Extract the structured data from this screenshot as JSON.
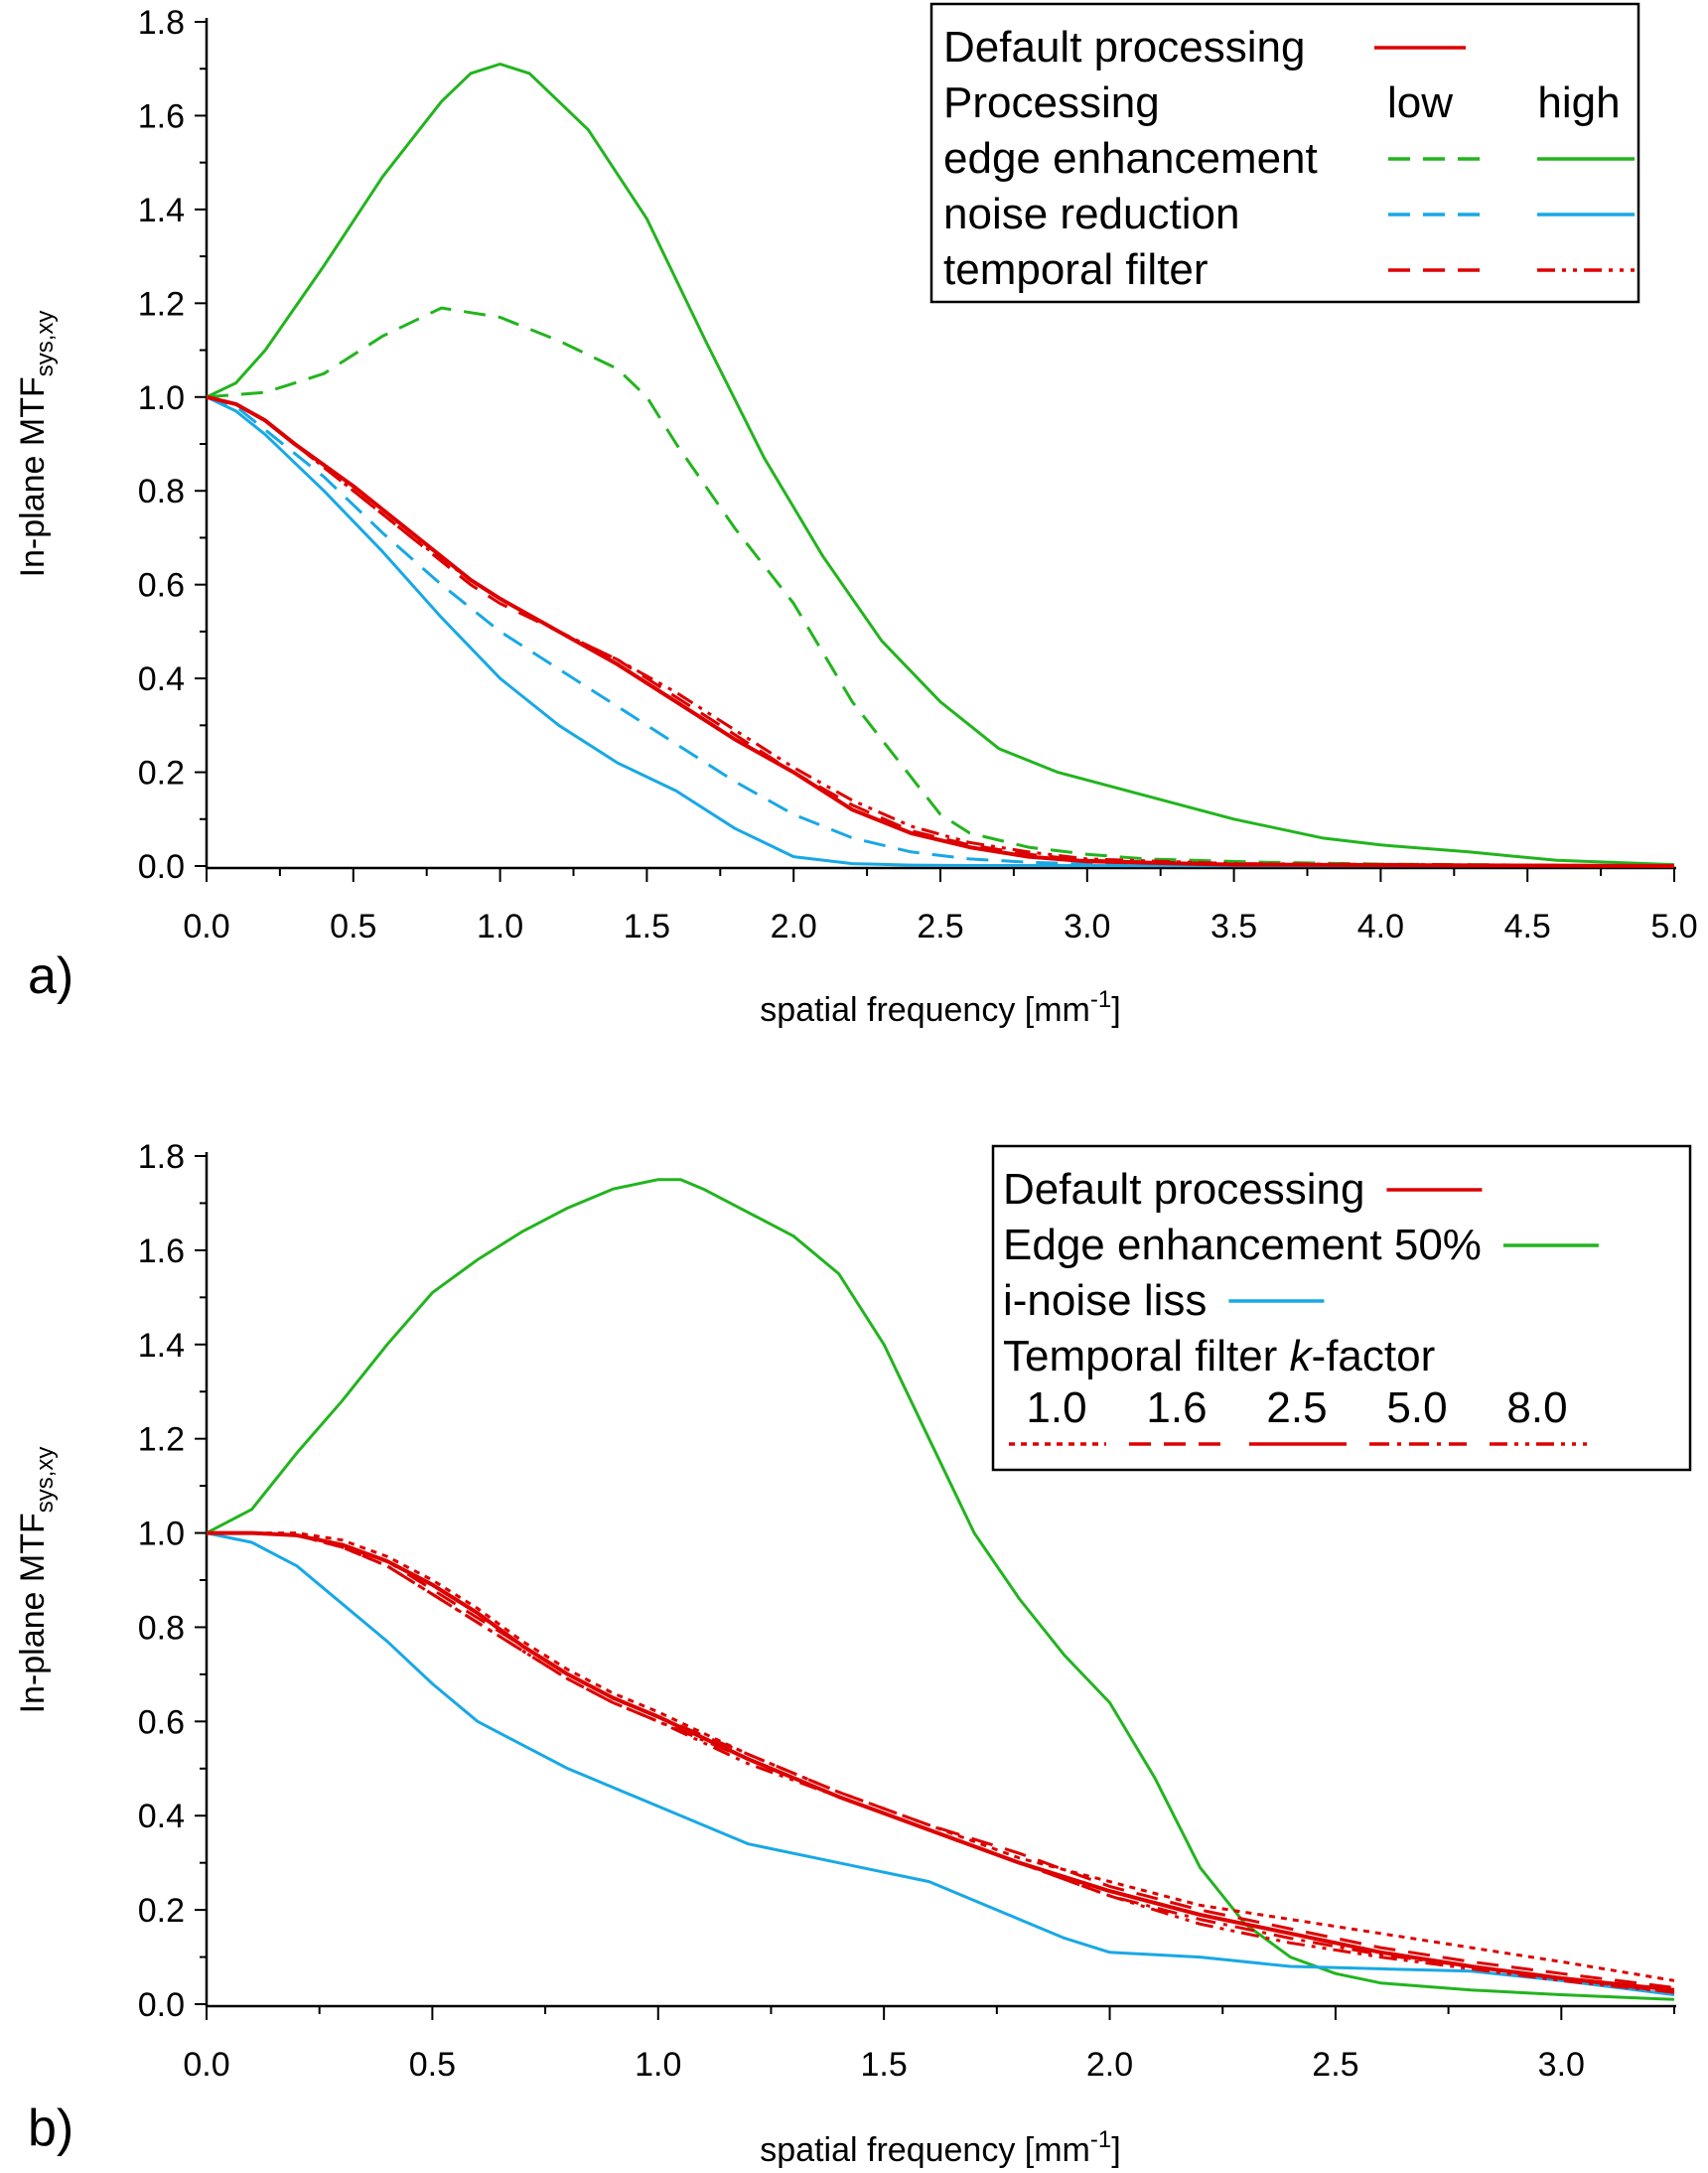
{
  "colors": {
    "red": "#dd0000",
    "green": "#22b41e",
    "cyan": "#18a8e6",
    "axis": "#000000"
  },
  "chart_data": [
    {
      "type": "line",
      "panel": "a)",
      "xlabel": "spatial frequency [mm",
      "xlabel_sup": "-1",
      "xlabel_end": "]",
      "ylabel": "In-plane MTF",
      "ylabel_sub": "sys,xy",
      "xlim": [
        0,
        5
      ],
      "ylim": [
        0,
        1.8
      ],
      "x_ticks": [
        "0.0",
        "0.5",
        "1.0",
        "1.5",
        "2.0",
        "2.5",
        "3.0",
        "3.5",
        "4.0",
        "4.5",
        "5.0"
      ],
      "y_ticks": [
        "0.0",
        "0.2",
        "0.4",
        "0.6",
        "0.8",
        "1.0",
        "1.2",
        "1.4",
        "1.6",
        "1.8"
      ],
      "legend": {
        "placement": "top-right",
        "rows": [
          {
            "label": "Default processing",
            "samples": [
              {
                "color": "red",
                "style": "solid"
              }
            ]
          },
          {
            "label": "Processing",
            "cols": [
              "low",
              "high"
            ]
          },
          {
            "label": "edge enhancement",
            "samples": [
              {
                "color": "green",
                "style": "dash"
              },
              {
                "color": "green",
                "style": "solid"
              }
            ]
          },
          {
            "label": "noise reduction",
            "samples": [
              {
                "color": "cyan",
                "style": "dash"
              },
              {
                "color": "cyan",
                "style": "solid"
              }
            ]
          },
          {
            "label": "temporal filter",
            "samples": [
              {
                "color": "red",
                "style": "dash"
              },
              {
                "color": "red",
                "style": "dashdotdot"
              }
            ]
          }
        ]
      },
      "series": [
        {
          "name": "Default processing",
          "color": "red",
          "style": "solid",
          "width": 4,
          "x": [
            0,
            0.1,
            0.2,
            0.3,
            0.5,
            0.7,
            0.9,
            1.0,
            1.2,
            1.4,
            1.6,
            1.8,
            2.0,
            2.2,
            2.4,
            2.6,
            2.8,
            3.0,
            3.5,
            5.0
          ],
          "y": [
            1.0,
            0.985,
            0.95,
            0.9,
            0.81,
            0.71,
            0.61,
            0.57,
            0.5,
            0.43,
            0.35,
            0.27,
            0.2,
            0.12,
            0.07,
            0.04,
            0.02,
            0.01,
            0.003,
            0
          ]
        },
        {
          "name": "edge enhancement low",
          "color": "green",
          "style": "dash",
          "width": 3,
          "x": [
            0,
            0.2,
            0.4,
            0.6,
            0.8,
            1.0,
            1.2,
            1.4,
            1.5,
            1.6,
            1.8,
            2.0,
            2.2,
            2.4,
            2.5,
            2.6,
            2.8,
            3.0,
            3.2,
            3.6,
            4.0,
            5.0
          ],
          "y": [
            1.0,
            1.01,
            1.05,
            1.13,
            1.19,
            1.17,
            1.12,
            1.06,
            1.0,
            0.9,
            0.72,
            0.56,
            0.35,
            0.19,
            0.11,
            0.07,
            0.04,
            0.025,
            0.015,
            0.008,
            0.004,
            0
          ]
        },
        {
          "name": "edge enhancement high",
          "color": "green",
          "style": "solid",
          "width": 3,
          "x": [
            0,
            0.1,
            0.2,
            0.4,
            0.6,
            0.8,
            0.9,
            1.0,
            1.1,
            1.3,
            1.5,
            1.7,
            1.9,
            2.1,
            2.3,
            2.5,
            2.7,
            2.9,
            3.2,
            3.5,
            3.8,
            4.0,
            4.3,
            4.6,
            5.0
          ],
          "y": [
            1.0,
            1.03,
            1.1,
            1.28,
            1.47,
            1.63,
            1.69,
            1.71,
            1.69,
            1.57,
            1.38,
            1.12,
            0.87,
            0.66,
            0.48,
            0.35,
            0.25,
            0.2,
            0.15,
            0.1,
            0.06,
            0.045,
            0.03,
            0.012,
            0.003
          ]
        },
        {
          "name": "noise reduction low",
          "color": "cyan",
          "style": "dash",
          "width": 3,
          "x": [
            0,
            0.1,
            0.2,
            0.4,
            0.6,
            0.8,
            1.0,
            1.2,
            1.4,
            1.6,
            1.8,
            2.0,
            2.2,
            2.4,
            2.6,
            2.8,
            3.0,
            5.0
          ],
          "y": [
            1.0,
            0.98,
            0.93,
            0.83,
            0.71,
            0.6,
            0.5,
            0.42,
            0.34,
            0.26,
            0.18,
            0.11,
            0.06,
            0.03,
            0.015,
            0.008,
            0.004,
            0
          ]
        },
        {
          "name": "noise reduction high",
          "color": "cyan",
          "style": "solid",
          "width": 3,
          "x": [
            0,
            0.1,
            0.2,
            0.4,
            0.6,
            0.8,
            1.0,
            1.2,
            1.4,
            1.6,
            1.8,
            2.0,
            2.2,
            2.4,
            2.6,
            5.0
          ],
          "y": [
            1.0,
            0.97,
            0.92,
            0.8,
            0.67,
            0.53,
            0.4,
            0.3,
            0.22,
            0.16,
            0.08,
            0.02,
            0.005,
            0.002,
            0.001,
            0
          ]
        },
        {
          "name": "temporal filter low",
          "color": "red",
          "style": "dash",
          "width": 3,
          "x": [
            0,
            0.1,
            0.2,
            0.3,
            0.5,
            0.7,
            0.9,
            1.0,
            1.2,
            1.4,
            1.6,
            1.8,
            2.0,
            2.2,
            2.4,
            2.6,
            2.8,
            3.0,
            3.5,
            5.0
          ],
          "y": [
            1.0,
            0.985,
            0.95,
            0.9,
            0.8,
            0.7,
            0.6,
            0.56,
            0.5,
            0.44,
            0.36,
            0.28,
            0.2,
            0.13,
            0.075,
            0.045,
            0.025,
            0.012,
            0.004,
            0
          ]
        },
        {
          "name": "temporal filter high",
          "color": "red",
          "style": "dashdotdot",
          "width": 3,
          "x": [
            0,
            0.1,
            0.2,
            0.3,
            0.5,
            0.7,
            0.9,
            1.0,
            1.2,
            1.4,
            1.6,
            1.8,
            2.0,
            2.2,
            2.4,
            2.6,
            2.8,
            3.0,
            3.5,
            5.0
          ],
          "y": [
            1.0,
            0.985,
            0.95,
            0.9,
            0.8,
            0.7,
            0.61,
            0.57,
            0.5,
            0.44,
            0.37,
            0.29,
            0.21,
            0.14,
            0.085,
            0.05,
            0.03,
            0.015,
            0.005,
            0
          ]
        }
      ]
    },
    {
      "type": "line",
      "panel": "b)",
      "xlabel": "spatial frequency [mm",
      "xlabel_sup": "-1",
      "xlabel_end": "]",
      "ylabel": "In-plane MTF",
      "ylabel_sub": "sys,xy",
      "xlim": [
        0,
        3.25
      ],
      "ylim": [
        0,
        1.8
      ],
      "x_ticks": [
        "0.0",
        "0.5",
        "1.0",
        "1.5",
        "2.0",
        "2.5",
        "3.0"
      ],
      "y_ticks": [
        "0.0",
        "0.2",
        "0.4",
        "0.6",
        "0.8",
        "1.0",
        "1.2",
        "1.4",
        "1.6",
        "1.8"
      ],
      "legend": {
        "placement": "top-right",
        "rows": [
          {
            "label": "Default processing",
            "samples": [
              {
                "color": "red",
                "style": "solid"
              }
            ]
          },
          {
            "label": "Edge enhancement 50%",
            "samples": [
              {
                "color": "green",
                "style": "solid"
              }
            ]
          },
          {
            "label": "i-noise liss",
            "samples": [
              {
                "color": "cyan",
                "style": "solid"
              }
            ]
          },
          {
            "label": "Temporal filter ",
            "label_italic": "k",
            "label_end": "-factor"
          }
        ],
        "kfactors": [
          {
            "label": "1.0",
            "style": "dot"
          },
          {
            "label": "1.6",
            "style": "dash"
          },
          {
            "label": "2.5",
            "style": "solid"
          },
          {
            "label": "5.0",
            "style": "dashdot"
          },
          {
            "label": "8.0",
            "style": "dashdotdot"
          }
        ]
      },
      "series": [
        {
          "name": "Default processing",
          "color": "red",
          "style": "solid",
          "width": 4,
          "x": [
            0,
            0.1,
            0.2,
            0.3,
            0.4,
            0.5,
            0.6,
            0.7,
            0.8,
            0.9,
            1.0,
            1.2,
            1.4,
            1.6,
            1.8,
            2.0,
            2.2,
            2.4,
            2.6,
            2.8,
            3.0,
            3.25
          ],
          "y": [
            1.0,
            1.0,
            0.995,
            0.975,
            0.94,
            0.89,
            0.83,
            0.76,
            0.7,
            0.65,
            0.61,
            0.52,
            0.44,
            0.37,
            0.3,
            0.24,
            0.19,
            0.15,
            0.11,
            0.08,
            0.055,
            0.03
          ]
        },
        {
          "name": "Edge enhancement 50%",
          "color": "green",
          "style": "solid",
          "width": 3,
          "x": [
            0,
            0.1,
            0.2,
            0.3,
            0.4,
            0.5,
            0.6,
            0.7,
            0.8,
            0.9,
            1.0,
            1.05,
            1.1,
            1.2,
            1.3,
            1.4,
            1.5,
            1.6,
            1.7,
            1.8,
            1.9,
            2.0,
            2.1,
            2.2,
            2.3,
            2.4,
            2.5,
            2.6,
            2.8,
            3.0,
            3.25
          ],
          "y": [
            1.0,
            1.05,
            1.17,
            1.28,
            1.4,
            1.51,
            1.58,
            1.64,
            1.69,
            1.73,
            1.75,
            1.75,
            1.73,
            1.68,
            1.63,
            1.55,
            1.4,
            1.2,
            1.0,
            0.86,
            0.74,
            0.64,
            0.48,
            0.29,
            0.17,
            0.1,
            0.065,
            0.045,
            0.03,
            0.02,
            0.01
          ]
        },
        {
          "name": "i-noise liss",
          "color": "cyan",
          "style": "solid",
          "width": 3,
          "x": [
            0,
            0.1,
            0.2,
            0.3,
            0.4,
            0.5,
            0.6,
            0.7,
            0.8,
            0.9,
            1.0,
            1.2,
            1.4,
            1.6,
            1.8,
            1.9,
            2.0,
            2.2,
            2.4,
            2.6,
            2.8,
            3.0,
            3.25
          ],
          "y": [
            1.0,
            0.98,
            0.93,
            0.85,
            0.77,
            0.68,
            0.6,
            0.55,
            0.5,
            0.46,
            0.42,
            0.34,
            0.3,
            0.26,
            0.18,
            0.14,
            0.11,
            0.1,
            0.08,
            0.075,
            0.07,
            0.05,
            0.02
          ]
        },
        {
          "name": "1.0",
          "color": "red",
          "style": "dot",
          "width": 3,
          "x": [
            0,
            0.1,
            0.2,
            0.3,
            0.4,
            0.5,
            0.6,
            0.7,
            0.8,
            0.9,
            1.0,
            1.2,
            1.4,
            1.6,
            1.8,
            2.0,
            2.2,
            2.4,
            2.6,
            2.8,
            3.0,
            3.25
          ],
          "y": [
            1.0,
            1.0,
            1.0,
            0.985,
            0.95,
            0.9,
            0.84,
            0.77,
            0.71,
            0.66,
            0.62,
            0.53,
            0.45,
            0.38,
            0.31,
            0.26,
            0.21,
            0.18,
            0.15,
            0.12,
            0.09,
            0.05
          ]
        },
        {
          "name": "1.6",
          "color": "red",
          "style": "dash",
          "width": 3,
          "x": [
            0,
            0.1,
            0.2,
            0.3,
            0.4,
            0.5,
            0.6,
            0.7,
            0.8,
            0.9,
            1.0,
            1.2,
            1.4,
            1.6,
            1.8,
            2.0,
            2.2,
            2.4,
            2.6,
            2.8,
            3.0,
            3.25
          ],
          "y": [
            1.0,
            1.0,
            0.995,
            0.975,
            0.94,
            0.88,
            0.82,
            0.76,
            0.7,
            0.65,
            0.61,
            0.53,
            0.45,
            0.38,
            0.32,
            0.25,
            0.2,
            0.16,
            0.12,
            0.09,
            0.065,
            0.035
          ]
        },
        {
          "name": "5.0",
          "color": "red",
          "style": "dashdot",
          "width": 3,
          "x": [
            0,
            0.1,
            0.2,
            0.3,
            0.4,
            0.5,
            0.6,
            0.7,
            0.8,
            0.9,
            1.0,
            1.2,
            1.4,
            1.6,
            1.8,
            2.0,
            2.2,
            2.4,
            2.6,
            2.8,
            3.0,
            3.25
          ],
          "y": [
            1.0,
            1.0,
            0.995,
            0.97,
            0.93,
            0.87,
            0.81,
            0.75,
            0.69,
            0.64,
            0.6,
            0.52,
            0.44,
            0.37,
            0.3,
            0.23,
            0.18,
            0.14,
            0.105,
            0.08,
            0.055,
            0.025
          ]
        },
        {
          "name": "8.0",
          "color": "red",
          "style": "dashdotdot",
          "width": 3,
          "x": [
            0,
            0.1,
            0.2,
            0.3,
            0.4,
            0.5,
            0.6,
            0.7,
            0.8,
            0.9,
            1.0,
            1.2,
            1.4,
            1.6,
            1.8,
            2.0,
            2.2,
            2.4,
            2.6,
            2.8,
            3.0,
            3.25
          ],
          "y": [
            1.0,
            1.0,
            0.995,
            0.97,
            0.93,
            0.87,
            0.81,
            0.75,
            0.69,
            0.64,
            0.6,
            0.51,
            0.44,
            0.37,
            0.3,
            0.23,
            0.17,
            0.13,
            0.1,
            0.075,
            0.05,
            0.025
          ]
        }
      ]
    }
  ]
}
